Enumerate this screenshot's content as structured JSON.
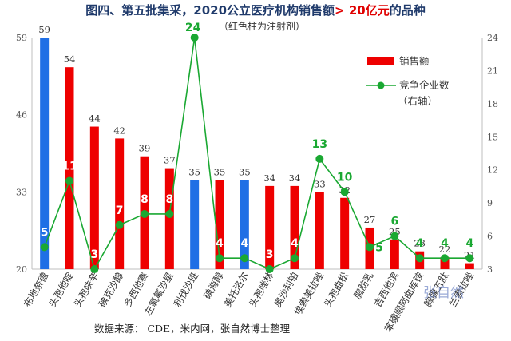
{
  "chart_data": {
    "type": "bar",
    "title_prefix": "图四、第五批集采，2020公立医疗机构销售额",
    "title_highlight": "> 20亿元",
    "title_suffix": "的品种",
    "subtitle": "（红色柱为注射剂）",
    "categories": [
      "布地奈德",
      "头孢他啶",
      "头孢呋辛",
      "碘克沙醇",
      "多西他赛",
      "左氧氟沙星",
      "利伐沙班",
      "碘海醇",
      "美托洛尔",
      "头孢唑林",
      "奥沙利铂",
      "埃索美拉唑",
      "头孢曲松",
      "脂肪乳",
      "吉西他滨",
      "苯磺顺阿曲库铵",
      "胸腺五肽",
      "兰索拉唑"
    ],
    "series": [
      {
        "name": "销售额",
        "values": [
          59,
          54,
          44,
          42,
          39,
          37,
          35,
          35,
          35,
          34,
          34,
          33,
          32,
          27,
          25,
          23,
          22,
          21
        ],
        "colors": [
          "#1f6fe5",
          "#ee0000",
          "#ee0000",
          "#ee0000",
          "#ee0000",
          "#ee0000",
          "#1f6fe5",
          "#ee0000",
          "#1f6fe5",
          "#ee0000",
          "#ee0000",
          "#ee0000",
          "#ee0000",
          "#ee0000",
          "#ee0000",
          "#ee0000",
          "#ee0000",
          "#ee0000"
        ]
      },
      {
        "name": "竞争企业数",
        "legend_suffix": "（右轴）",
        "type": "line",
        "axis": "right",
        "values": [
          5,
          11,
          3,
          7,
          8,
          8,
          24,
          4,
          4,
          3,
          4,
          13,
          10,
          5,
          6,
          4,
          4,
          4
        ]
      }
    ],
    "left_axis": {
      "ylim": [
        20,
        59
      ],
      "ticks": [
        20,
        33,
        46,
        59
      ]
    },
    "right_axis": {
      "ylim": [
        3,
        24
      ],
      "ticks": [
        3,
        6,
        9,
        12,
        15,
        18,
        21,
        24
      ]
    },
    "legend_position": "right",
    "line_color": "#1aa832",
    "source": "数据来源：  CDE，米内网，张自然博士整理",
    "watermark": "张自然"
  }
}
